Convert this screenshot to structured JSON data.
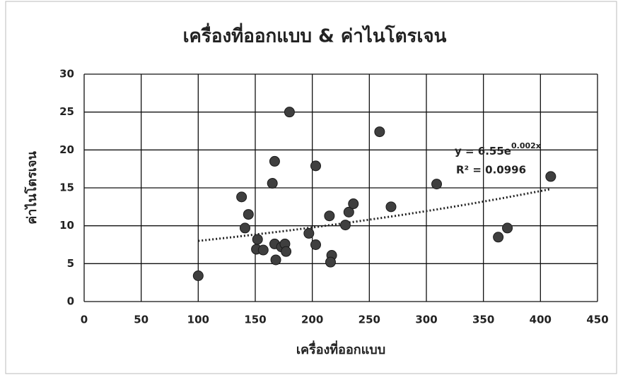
{
  "chart_data": {
    "type": "scatter",
    "title": "เครื่องที่ออกแบบ & ค่าไนโตรเจน",
    "x_label": "เครื่องที่ออกแบบ",
    "y_label": "ค่าไนโตรเจน",
    "x": [
      100,
      138,
      144,
      141,
      152,
      151,
      157,
      165,
      167,
      167,
      168,
      173,
      176,
      177,
      180,
      197,
      203,
      203,
      215,
      217,
      216,
      229,
      232,
      236,
      259,
      269,
      309,
      363,
      371,
      409
    ],
    "values": [
      3.4,
      13.8,
      11.5,
      9.7,
      8.2,
      6.9,
      6.8,
      15.6,
      18.5,
      7.6,
      5.5,
      7.2,
      7.6,
      6.6,
      25.0,
      9.0,
      17.9,
      7.5,
      11.3,
      6.1,
      5.2,
      10.1,
      11.8,
      12.9,
      22.4,
      12.5,
      15.5,
      8.5,
      9.7,
      16.5
    ],
    "color": "#3f3f3f",
    "xlim": [
      0,
      450
    ],
    "xticks": [
      0,
      50,
      100,
      150,
      200,
      250,
      300,
      350,
      400,
      450
    ],
    "ylim": [
      0,
      30
    ],
    "yticks": [
      0,
      5,
      10,
      15,
      20,
      25,
      30
    ],
    "grid": true,
    "trendline": {
      "a": 6.55,
      "b": 0.002,
      "label": "y = 6.55e",
      "label_exponent": "0.002x",
      "r2_label": "R² = 0.0996"
    }
  }
}
